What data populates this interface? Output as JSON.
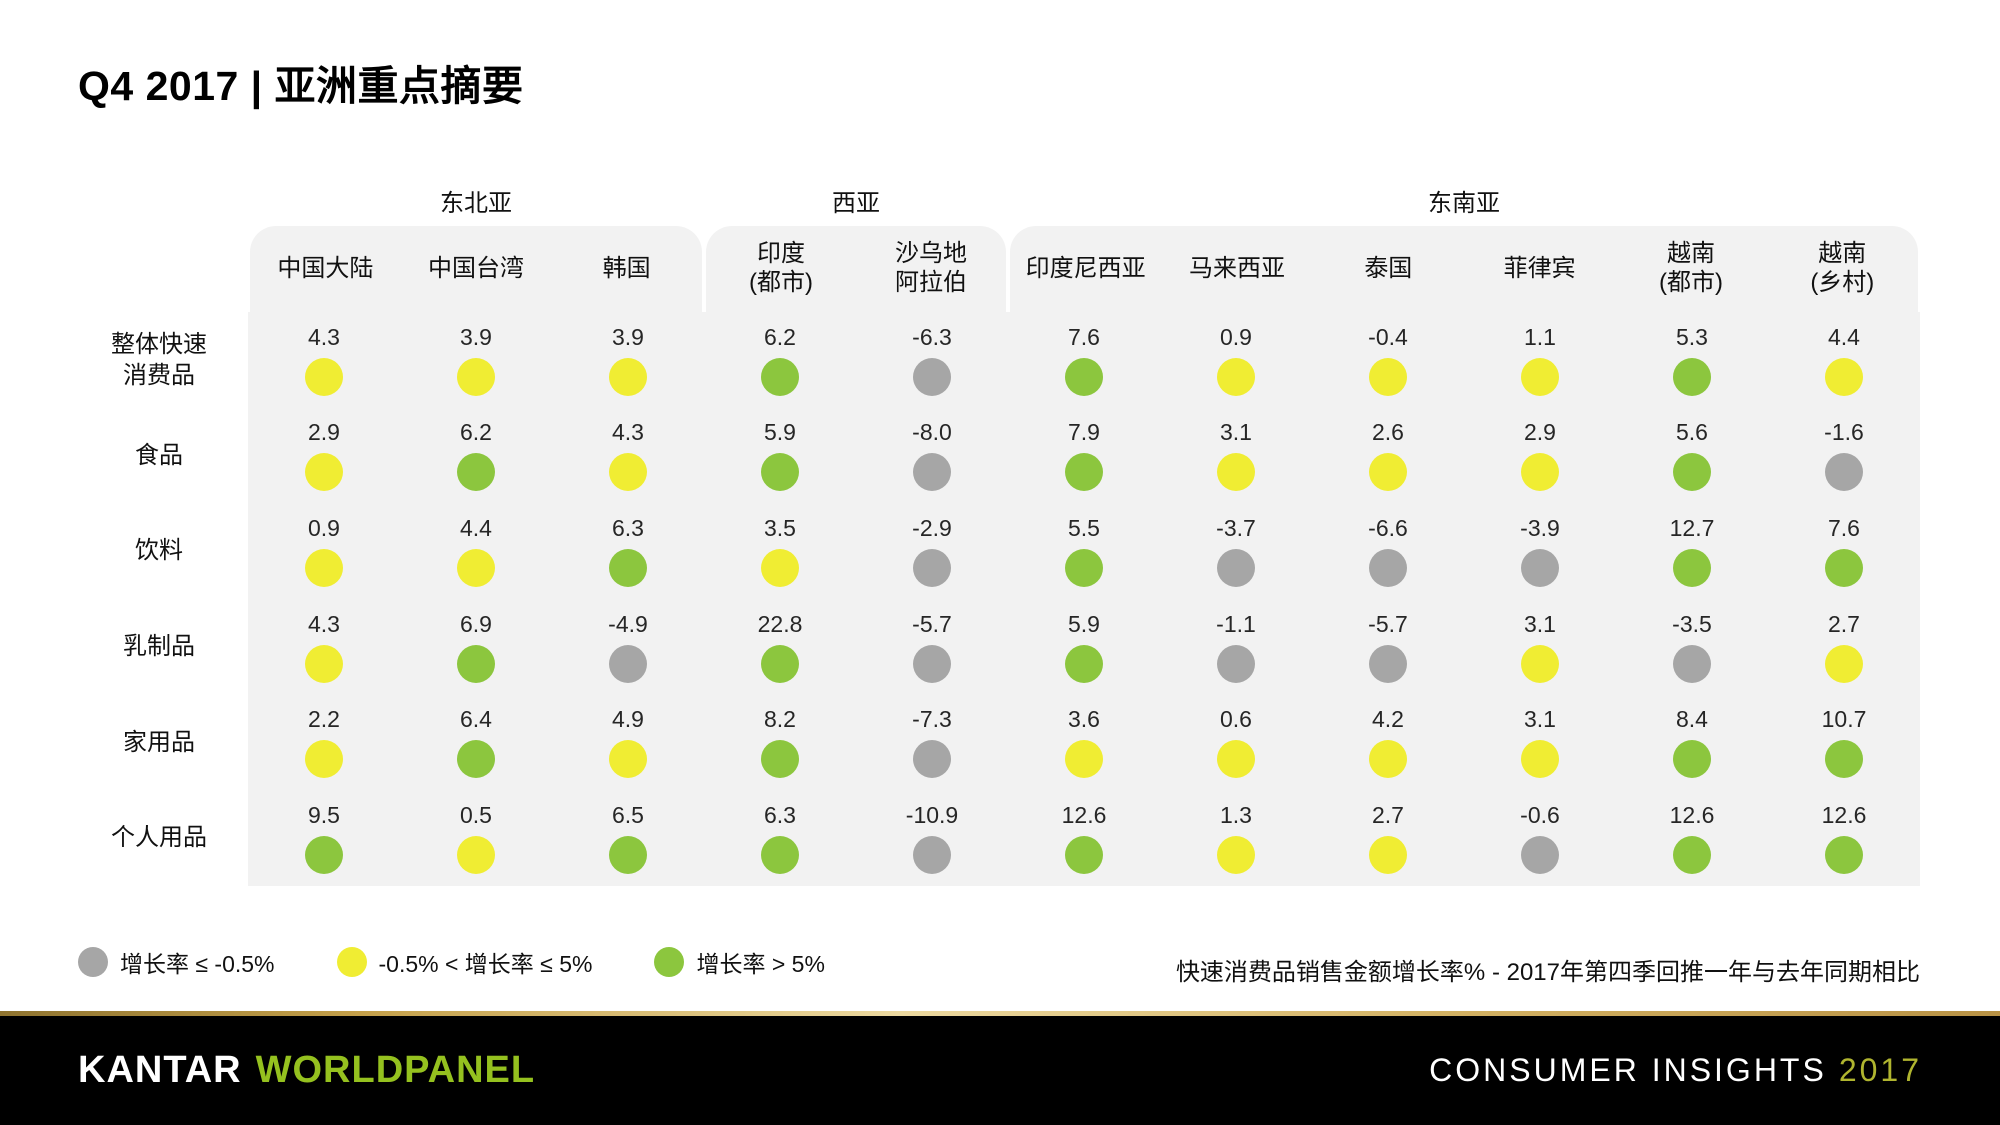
{
  "title": "Q4 2017 | 亚洲重点摘要",
  "chart_data": {
    "type": "table",
    "title": "Q4 2017 | 亚洲重点摘要",
    "description": "快速消费品销售金额增长率% - 2017年第四季回推一年与去年同期相比",
    "region_groups": [
      {
        "label": "东北亚",
        "start": 0,
        "span": 3
      },
      {
        "label": "西亚",
        "start": 3,
        "span": 2
      },
      {
        "label": "东南亚",
        "start": 5,
        "span": 6
      }
    ],
    "columns": [
      "中国大陆",
      "中国台湾",
      "韩国",
      "印度\n(都市)",
      "沙乌地\n阿拉伯",
      "印度尼西亚",
      "马来西亚",
      "泰国",
      "菲律宾",
      "越南\n(都市)",
      "越南\n(乡村)"
    ],
    "rows": [
      "整体快速\n消费品",
      "食品",
      "饮料",
      "乳制品",
      "家用品",
      "个人用品"
    ],
    "values": [
      [
        4.3,
        3.9,
        3.9,
        6.2,
        -6.3,
        7.6,
        0.9,
        -0.4,
        1.1,
        5.3,
        4.4
      ],
      [
        2.9,
        6.2,
        4.3,
        5.9,
        -8.0,
        7.9,
        3.1,
        2.6,
        2.9,
        5.6,
        -1.6
      ],
      [
        0.9,
        4.4,
        6.3,
        3.5,
        -2.9,
        5.5,
        -3.7,
        -6.6,
        -3.9,
        12.7,
        7.6
      ],
      [
        4.3,
        6.9,
        -4.9,
        22.8,
        -5.7,
        5.9,
        -1.1,
        -5.7,
        3.1,
        -3.5,
        2.7
      ],
      [
        2.2,
        6.4,
        4.9,
        8.2,
        -7.3,
        3.6,
        0.6,
        4.2,
        3.1,
        8.4,
        10.7
      ],
      [
        9.5,
        0.5,
        6.5,
        6.3,
        -10.9,
        12.6,
        1.3,
        2.7,
        -0.6,
        12.6,
        12.6
      ]
    ],
    "thresholds": {
      "gray_max": -0.5,
      "yellow_max": 5
    },
    "unit": "%"
  },
  "legend": [
    {
      "label": "增长率 ≤ -0.5%",
      "color_key": "gray"
    },
    {
      "label": "-0.5% < 增长率 ≤  5%",
      "color_key": "yellow"
    },
    {
      "label": "增长率 > 5%",
      "color_key": "green"
    }
  ],
  "note": "快速消费品销售金额增长率% - 2017年第四季回推一年与去年同期相比",
  "footer": {
    "brand_kantar": "KANTAR",
    "brand_worldpanel": "WORLDPANEL",
    "right_label": "CONSUMER INSIGHTS",
    "right_year": "2017"
  },
  "colors": {
    "gray": "#a6a6a6",
    "yellow": "#f0ed33",
    "green": "#8cc63e",
    "table_bg": "#f2f2f2",
    "brand_green": "#95c11f",
    "year_green": "#b0b52f",
    "footer_bg": "#000000"
  }
}
